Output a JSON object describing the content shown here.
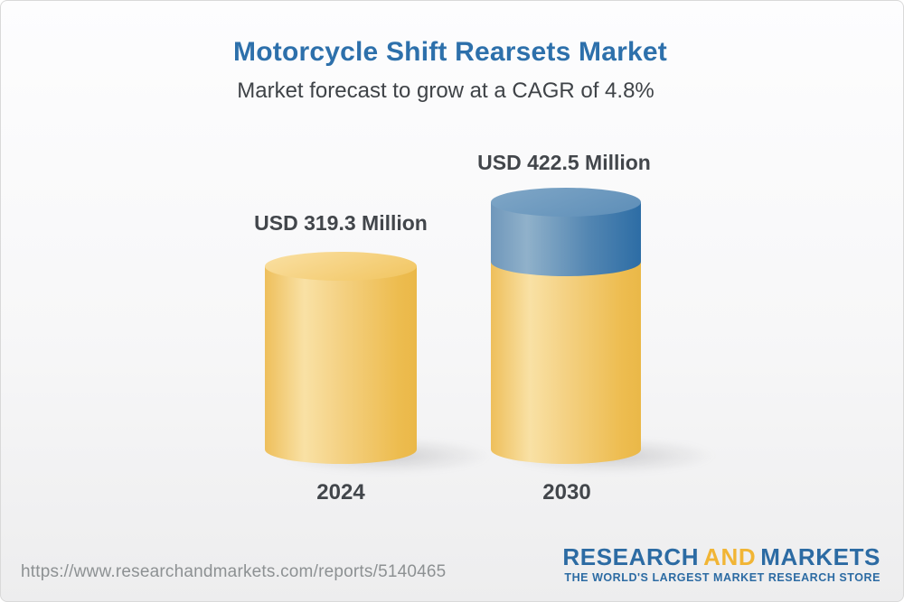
{
  "header": {
    "title": "Motorcycle Shift Rearsets Market",
    "subtitle": "Market forecast to grow at a CAGR of 4.8%"
  },
  "chart_data": {
    "type": "bar",
    "style": "3d-cylinder",
    "categories": [
      "2024",
      "2030"
    ],
    "values": [
      319.3,
      422.5
    ],
    "unit": "USD Million",
    "value_labels": [
      "USD 319.3 Million",
      "USD 422.5 Million"
    ],
    "cagr_percent": 4.8,
    "legend": "none",
    "axes": "none",
    "grid": false,
    "colors": {
      "bar_base": "#eec05c",
      "bar_growth_segment": "#5386b2",
      "label_text": "#42464b"
    },
    "notes": "2030 cylinder shows the increment above the 2024 level as a blue top segment"
  },
  "footer": {
    "url": "https://www.researchandmarkets.com/reports/5140465",
    "logo": {
      "word1": "RESEARCH",
      "word2": "AND",
      "word3": "MARKETS",
      "tagline": "THE WORLD'S LARGEST MARKET RESEARCH STORE",
      "blue": "#2c6ba3",
      "gold": "#f1b535"
    }
  },
  "theme": {
    "title_color": "#2d70ab",
    "background_top": "#fdfdfe",
    "background_bottom": "#ededee",
    "border_color": "#d9d9d9"
  }
}
